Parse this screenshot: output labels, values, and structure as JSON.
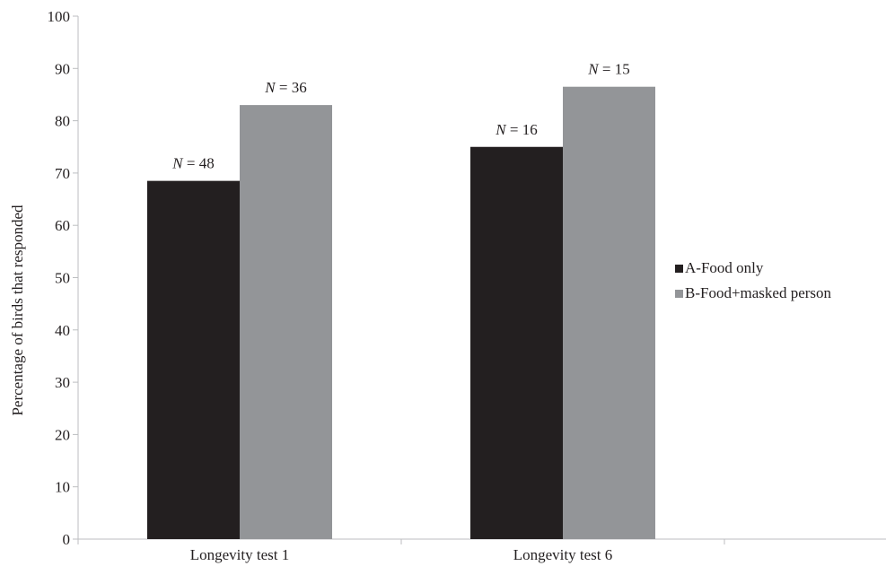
{
  "chart_data": {
    "type": "bar",
    "categories": [
      "Longevity test 1",
      "Longevity test 6"
    ],
    "series": [
      {
        "name": "A-Food only",
        "values": [
          68.5,
          75
        ],
        "labels": [
          "N = 48",
          "N = 16"
        ],
        "color": "#231f20"
      },
      {
        "name": "B-Food+masked person",
        "values": [
          83,
          86.5
        ],
        "labels": [
          "N = 36",
          "N = 15"
        ],
        "color": "#939598"
      }
    ],
    "title": "",
    "xlabel": "",
    "ylabel": "Percentage of birds that responded",
    "ylim": [
      0,
      100
    ],
    "yticks": [
      0,
      10,
      20,
      30,
      40,
      50,
      60,
      70,
      80,
      90,
      100
    ],
    "grid": false,
    "legend_position": "right"
  }
}
